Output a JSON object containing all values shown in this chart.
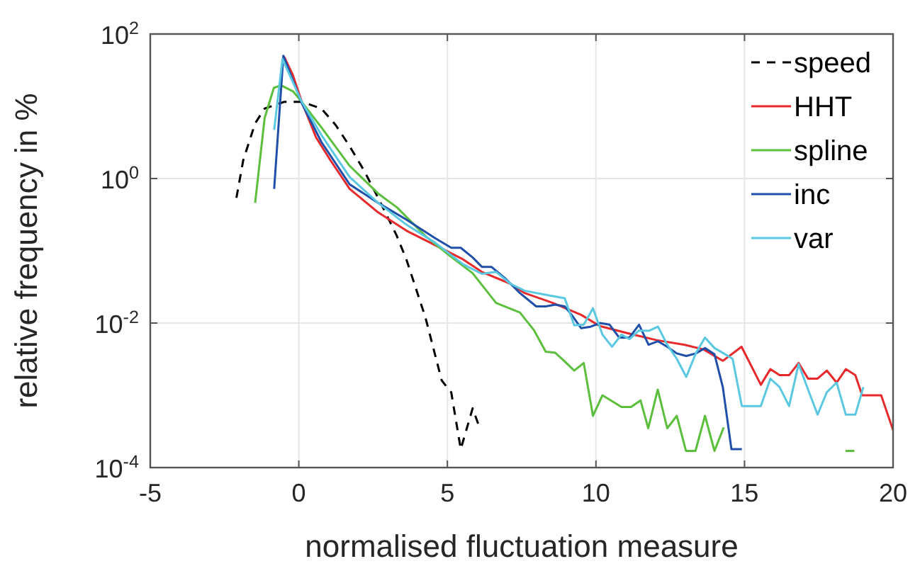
{
  "chart_data": {
    "type": "line",
    "xlabel": "normalised fluctuation measure",
    "ylabel": "relative frequency in %",
    "log": "y",
    "grid": true,
    "legend": "top right",
    "xlim": [
      -5,
      20
    ],
    "xticks": [
      -5,
      0,
      5,
      10,
      15,
      20
    ],
    "ylim": [
      0.0001,
      100
    ],
    "yticks": [
      {
        "value": 0.0001,
        "label": "10$^{-4}$"
      },
      {
        "value": 0.01,
        "label": "10$^{-2}$"
      },
      {
        "value": 1,
        "label": "10$^{0}$"
      },
      {
        "value": 100,
        "label": "10$^{2}$"
      }
    ],
    "series": [
      {
        "name": "speed",
        "color": "#000000",
        "line_style": "dashed",
        "x": [
          -2.1,
          -1.87,
          -1.47,
          -1.15,
          -0.5,
          0.1,
          0.76,
          1.24,
          1.71,
          2.19,
          2.67,
          3.3,
          3.62,
          4.26,
          4.81,
          5.13,
          5.45,
          5.85,
          6.08
        ],
        "values": [
          0.54,
          1.8,
          5.8,
          9.3,
          11.5,
          11.5,
          9.3,
          5.5,
          2.8,
          1.3,
          0.54,
          0.16,
          0.076,
          0.012,
          0.0016,
          0.0011,
          0.00018,
          0.00066,
          0.00036
        ]
      },
      {
        "name": "HHT",
        "color": "#e8292c",
        "line_style": "solid",
        "x": [
          -0.5,
          -0.2,
          0.1,
          0.58,
          1.06,
          1.71,
          2.67,
          3.62,
          4.58,
          5.53,
          6.16,
          7.12,
          7.6,
          8.55,
          9.5,
          10.13,
          11.08,
          12.04,
          12.99,
          13.63,
          14.27,
          14.9,
          15.55,
          15.87,
          16.18,
          16.5,
          16.82,
          17.14,
          17.46,
          17.77,
          18.1,
          18.41,
          18.73,
          18.96,
          19.6,
          20
        ],
        "values": [
          49,
          27,
          11.5,
          3.7,
          1.8,
          0.72,
          0.34,
          0.19,
          0.12,
          0.076,
          0.051,
          0.035,
          0.026,
          0.019,
          0.013,
          0.0091,
          0.0072,
          0.0058,
          0.005,
          0.0043,
          0.003,
          0.0047,
          0.0014,
          0.0023,
          0.0019,
          0.0019,
          0.0028,
          0.0017,
          0.0017,
          0.0022,
          0.0015,
          0.0023,
          0.0019,
          0.001,
          0.001,
          0.00033
        ]
      },
      {
        "name": "spline",
        "color": "#5cbf3c",
        "line_style": "solid",
        "x": [
          -1.47,
          -1.15,
          -0.84,
          -0.6,
          -0.19,
          0.1,
          0.76,
          1.71,
          2.67,
          3.3,
          4.26,
          5.05,
          5.85,
          6.64,
          7.44,
          7.92,
          8.31,
          8.62,
          8.93,
          9.27,
          9.59,
          9.9,
          10.22,
          10.86,
          11.18,
          11.5,
          11.76,
          12.08,
          12.4,
          12.72,
          13.03,
          13.35,
          13.67,
          13.99,
          14.3,
          16,
          18.4,
          18.7
        ],
        "values": [
          0.46,
          6.9,
          18,
          19.5,
          16,
          11.5,
          5.1,
          1.5,
          0.62,
          0.4,
          0.16,
          0.087,
          0.049,
          0.019,
          0.014,
          0.0079,
          0.004,
          0.0039,
          0.003,
          0.0022,
          0.0028,
          0.00052,
          0.001,
          0.00069,
          0.00069,
          0.00085,
          0.00035,
          0.0012,
          0.00035,
          0.00052,
          0.00017,
          0.00017,
          0.00052,
          0.00017,
          0.00036,
          null,
          0.00017,
          0.00017
        ]
      },
      {
        "name": "inc",
        "color": "#1f4fa8",
        "line_style": "solid",
        "x": [
          -0.83,
          -0.52,
          0.1,
          0.76,
          1.71,
          2.67,
          3.62,
          4.58,
          5.13,
          5.45,
          5.85,
          6.16,
          6.48,
          6.96,
          7.44,
          7.99,
          8.31,
          8.63,
          8.95,
          9.18,
          9.5,
          9.82,
          10.14,
          10.46,
          10.78,
          11.13,
          11.45,
          11.77,
          12.09,
          12.4,
          12.72,
          13.04,
          13.36,
          13.67,
          13.99,
          14.27,
          14.56,
          14.91
        ],
        "values": [
          0.72,
          50,
          11,
          3.2,
          0.83,
          0.46,
          0.27,
          0.15,
          0.11,
          0.11,
          0.081,
          0.06,
          0.06,
          0.041,
          0.026,
          0.017,
          0.017,
          0.018,
          0.017,
          0.013,
          0.0085,
          0.0089,
          0.01,
          0.0095,
          0.0063,
          0.0063,
          0.0095,
          0.005,
          0.0056,
          0.0047,
          0.0038,
          0.0035,
          0.0038,
          0.0045,
          0.0037,
          0.0013,
          0.00018,
          0.00018
        ]
      },
      {
        "name": "var",
        "color": "#5ac8e0",
        "line_style": "solid",
        "x": [
          -0.83,
          -0.55,
          0.1,
          0.76,
          1.71,
          2.67,
          3.62,
          4.58,
          5.53,
          6.16,
          6.64,
          7.12,
          7.6,
          8.23,
          8.95,
          9.27,
          9.59,
          9.9,
          10.22,
          10.54,
          10.86,
          11.13,
          11.45,
          11.77,
          12.09,
          12.4,
          12.72,
          13.04,
          13.36,
          13.67,
          13.99,
          14.3,
          14.6,
          14.91,
          15.23,
          15.55,
          15.87,
          16.18,
          16.5,
          16.82,
          17.14,
          17.46,
          17.77,
          18.1,
          18.41,
          18.73,
          19.0
        ],
        "values": [
          4.7,
          45,
          11.5,
          4,
          1.05,
          0.46,
          0.23,
          0.13,
          0.065,
          0.048,
          0.051,
          0.035,
          0.028,
          0.025,
          0.022,
          0.0093,
          0.0095,
          0.016,
          0.0069,
          0.0047,
          0.0069,
          0.006,
          0.0079,
          0.0078,
          0.0089,
          0.005,
          0.0032,
          0.0018,
          0.0038,
          0.0063,
          0.0045,
          0.0038,
          0.0032,
          0.00071,
          0.00071,
          0.00071,
          0.0017,
          0.0013,
          0.00071,
          0.0027,
          0.0012,
          0.00054,
          0.0011,
          0.0015,
          0.00054,
          0.00054,
          0.0013
        ]
      }
    ]
  }
}
